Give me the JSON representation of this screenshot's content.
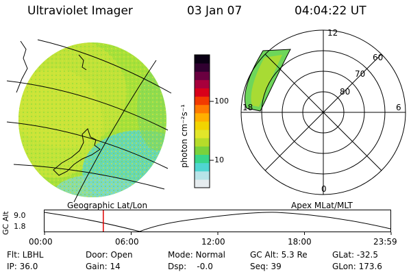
{
  "header": {
    "instrument": "Ultraviolet Imager",
    "date": "03 Jan 07",
    "time": "04:04:22 UT"
  },
  "left_panel": {
    "caption": "Geographic Lat/Lon"
  },
  "right_panel": {
    "caption": "Apex MLat/MLT",
    "mlt_labels": [
      "12",
      "6",
      "0",
      "18"
    ],
    "mlat_labels": [
      "60",
      "70",
      "80"
    ]
  },
  "colorbar": {
    "unit": "photon cm⁻²s⁻¹",
    "tick_labels": [
      "100",
      "10"
    ],
    "colors": [
      "#e6ecef",
      "#b8e4e8",
      "#4fd6d2",
      "#38d68a",
      "#7ad23c",
      "#b6dc2a",
      "#e2e62a",
      "#f2d400",
      "#ffb000",
      "#ff7a00",
      "#f23a00",
      "#d8001a",
      "#a8003c",
      "#6a0040",
      "#300030",
      "#0a0014"
    ]
  },
  "altitude_strip": {
    "ylabel": "GC Alt",
    "y_ticks": [
      "9.0",
      "1.8"
    ],
    "x_ticks": [
      "00:00",
      "06:00",
      "12:00",
      "18:00",
      "23:59"
    ],
    "current_marker_hour": 4.07
  },
  "status": {
    "row1": [
      "Flt: LBHL",
      "Door: Open",
      "Mode: Normal",
      "GC Alt: 5.3 Re",
      "GLat: -32.5"
    ],
    "row2": [
      "IP: 36.0",
      "Gain: 14",
      "Dsp:    -0.0",
      "Seq: 39",
      "GLon: 173.6"
    ]
  }
}
